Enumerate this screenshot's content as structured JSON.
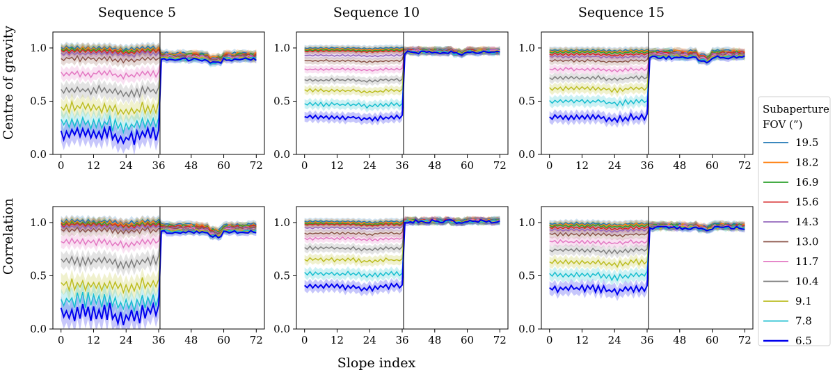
{
  "figure": {
    "xlabel": "Slope index",
    "row_labels": [
      "Centre of gravity",
      "Correlation"
    ],
    "column_titles": [
      "Sequence 5",
      "Sequence 10",
      "Sequence 15"
    ],
    "legend": {
      "title_line1": "Subaperture",
      "title_line2": "FOV (”)",
      "placement": "right"
    }
  },
  "chart_data": {
    "type": "line",
    "grid": false,
    "xlim": [
      -3,
      75
    ],
    "ylim": [
      0,
      1.15
    ],
    "xticks": [
      0,
      12,
      24,
      36,
      48,
      60,
      72
    ],
    "yticks": [
      0.0,
      0.5,
      1.0
    ],
    "divider_x": 36.5,
    "x": "slope index 0 to 72",
    "series_names": [
      "19.5",
      "18.2",
      "16.9",
      "15.6",
      "14.3",
      "13.0",
      "11.7",
      "10.4",
      "9.1",
      "7.8",
      "6.5"
    ],
    "series_colors": [
      "#1f77b4",
      "#ff7f0e",
      "#2ca02c",
      "#d62728",
      "#9467bd",
      "#8c564b",
      "#e377c2",
      "#7f7f7f",
      "#bcbd22",
      "#17becf",
      "#0000ee"
    ],
    "panels": [
      {
        "row": 0,
        "col": 0,
        "title": "Sequence 5",
        "left_means": [
          1.0,
          0.99,
          0.98,
          0.97,
          0.95,
          0.9,
          0.76,
          0.6,
          0.44,
          0.3,
          0.2
        ],
        "right_mean": 0.95,
        "right_low": 0.89,
        "wiggle": 0.08
      },
      {
        "row": 0,
        "col": 1,
        "title": "Sequence 10",
        "left_means": [
          1.0,
          0.99,
          0.98,
          0.97,
          0.93,
          0.88,
          0.8,
          0.7,
          0.6,
          0.47,
          0.35
        ],
        "right_mean": 0.98,
        "right_low": 0.96,
        "wiggle": 0.03
      },
      {
        "row": 0,
        "col": 2,
        "title": "Sequence 15",
        "left_means": [
          0.98,
          0.97,
          0.96,
          0.94,
          0.92,
          0.88,
          0.8,
          0.72,
          0.62,
          0.5,
          0.35
        ],
        "right_mean": 0.97,
        "right_low": 0.91,
        "wiggle": 0.04
      },
      {
        "row": 1,
        "col": 0,
        "title": "Sequence 5",
        "left_means": [
          1.01,
          1.0,
          0.99,
          0.98,
          0.96,
          0.93,
          0.82,
          0.64,
          0.42,
          0.27,
          0.16
        ],
        "right_mean": 0.98,
        "right_low": 0.91,
        "wiggle": 0.09
      },
      {
        "row": 1,
        "col": 1,
        "title": "Sequence 10",
        "left_means": [
          1.01,
          1.0,
          0.99,
          0.98,
          0.95,
          0.9,
          0.85,
          0.76,
          0.65,
          0.52,
          0.4
        ],
        "right_mean": 1.02,
        "right_low": 1.01,
        "wiggle": 0.04
      },
      {
        "row": 1,
        "col": 2,
        "title": "Sequence 15",
        "left_means": [
          0.99,
          0.98,
          0.97,
          0.95,
          0.93,
          0.89,
          0.82,
          0.74,
          0.63,
          0.51,
          0.38
        ],
        "right_mean": 0.98,
        "right_low": 0.95,
        "wiggle": 0.05
      }
    ]
  }
}
